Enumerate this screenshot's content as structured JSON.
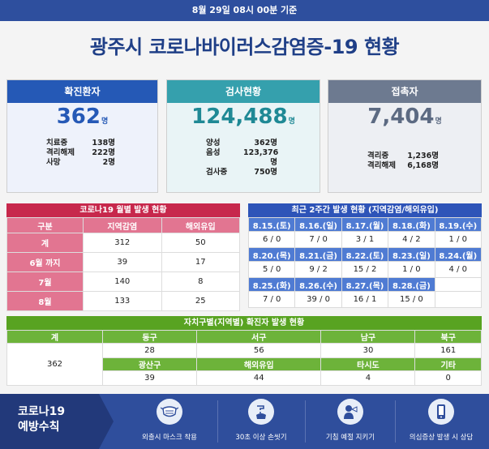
{
  "header": {
    "datetime": "8월 29일 08시 00분 기준"
  },
  "title": "광주시 코로나바이러스감염증-19 현황",
  "unit": "명",
  "cards": {
    "confirmed": {
      "label": "확진환자",
      "value": "362",
      "rows": [
        {
          "k": "치료중",
          "v": "138명"
        },
        {
          "k": "격리해제",
          "v": "222명"
        },
        {
          "k": "사망",
          "v": "2명"
        }
      ]
    },
    "tests": {
      "label": "검사현황",
      "value": "124,488",
      "rows": [
        {
          "k": "양성",
          "v": "362명"
        },
        {
          "k": "음성",
          "v": "123,376명"
        },
        {
          "k": "검사중",
          "v": "750명"
        }
      ]
    },
    "contacts": {
      "label": "접촉자",
      "value": "7,404",
      "rows": [
        {
          "k": "격리중",
          "v": "1,236명"
        },
        {
          "k": "격리해제",
          "v": "6,168명"
        }
      ]
    }
  },
  "monthly": {
    "title": "코로나19 월별 발생 현황",
    "headers": [
      "구분",
      "지역감염",
      "해외유입"
    ],
    "rows": [
      {
        "label": "계",
        "local": "312",
        "overseas": "50"
      },
      {
        "label": "6월 까지",
        "local": "39",
        "overseas": "17"
      },
      {
        "label": "7월",
        "local": "140",
        "overseas": "8"
      },
      {
        "label": "8월",
        "local": "133",
        "overseas": "25"
      }
    ]
  },
  "twoweeks": {
    "title": "최근 2주간 발생 현황 (지역감염/해외유입)",
    "rows": [
      {
        "dates": [
          "8.15.(토)",
          "8.16.(일)",
          "8.17.(월)",
          "8.18.(화)",
          "8.19.(수)"
        ],
        "values": [
          "6 / 0",
          "7 / 0",
          "3 / 1",
          "4 / 2",
          "1 / 0"
        ]
      },
      {
        "dates": [
          "8.20.(목)",
          "8.21.(금)",
          "8.22.(토)",
          "8.23.(일)",
          "8.24.(월)"
        ],
        "values": [
          "5 / 0",
          "9 / 2",
          "15 / 2",
          "1 / 0",
          "4 / 0"
        ]
      },
      {
        "dates": [
          "8.25.(화)",
          "8.26.(수)",
          "8.27.(목)",
          "8.28.(금)"
        ],
        "values": [
          "7 / 0",
          "39 / 0",
          "16 / 1",
          "15 / 0"
        ]
      }
    ]
  },
  "districts": {
    "title": "자치구별(지역별) 확진자 발생 현황",
    "total_label": "계",
    "total_value": "362",
    "row1": {
      "headers": [
        "동구",
        "서구",
        "남구",
        "북구"
      ],
      "values": [
        "28",
        "56",
        "30",
        "161"
      ]
    },
    "row2": {
      "headers": [
        "광산구",
        "해외유입",
        "타시도",
        "기타"
      ],
      "values": [
        "39",
        "44",
        "4",
        "0"
      ]
    }
  },
  "banner": {
    "label_line1": "코로나19",
    "label_line2": "예방수칙",
    "items": [
      {
        "text": "외출시 마스크 착용",
        "icon": "mask-icon"
      },
      {
        "text": "30초 이상 손씻기",
        "icon": "handwash-icon"
      },
      {
        "text": "기침 예절 지키기",
        "icon": "cough-icon"
      },
      {
        "text": "의심증상 발생 시 상담",
        "icon": "phone-icon"
      }
    ]
  }
}
